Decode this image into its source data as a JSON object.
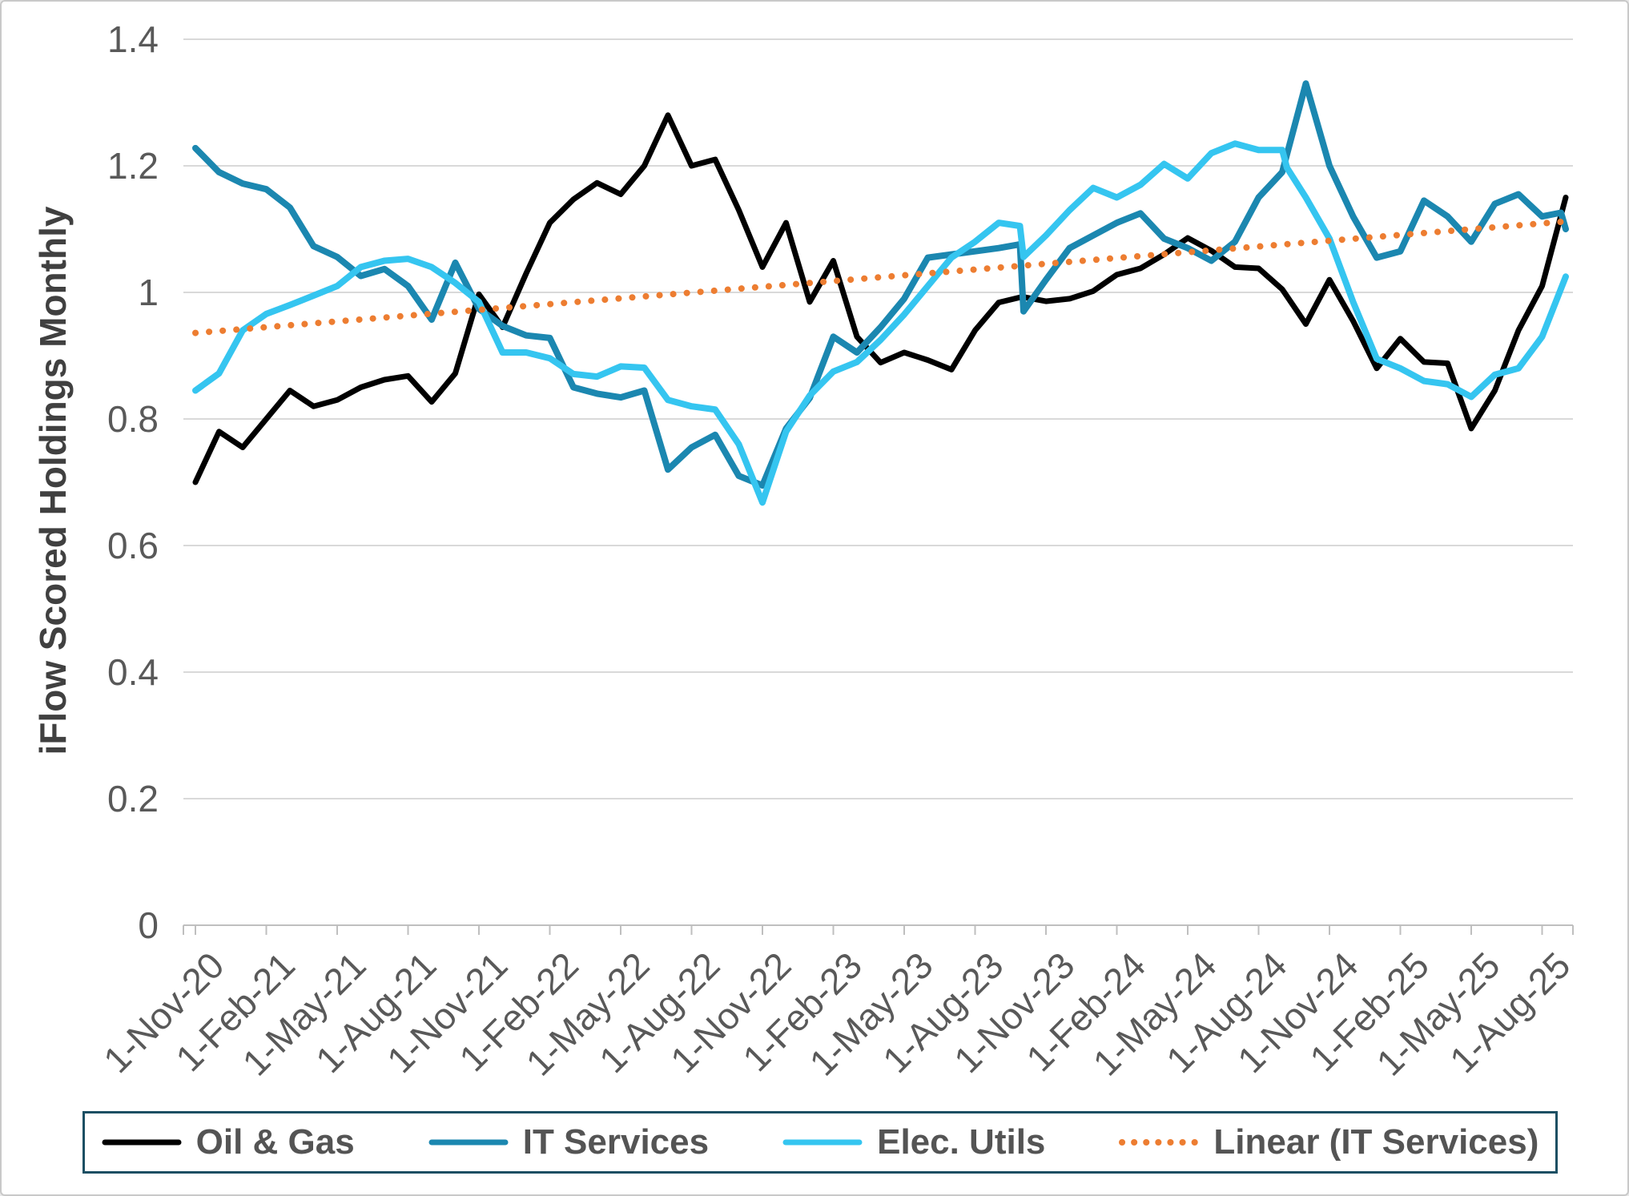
{
  "chart_data": {
    "type": "line",
    "title": "",
    "xlabel": "",
    "ylabel": "iFlow Scored Holdings Monthly",
    "ylim": [
      0,
      1.4
    ],
    "grid": "horizontal",
    "legend_position": "bottom",
    "x_unit": "months since 1-Nov-20 (monthly data, fractional x = same-date step)",
    "y_ticks": {
      "values": [
        0,
        0.2,
        0.4,
        0.6,
        0.8,
        1.0,
        1.2,
        1.4
      ],
      "labels": [
        "0",
        "0.2",
        "0.4",
        "0.6",
        "0.8",
        "1",
        "1.2",
        "1.4"
      ]
    },
    "x_tick_month_indices": [
      0,
      3,
      6,
      9,
      12,
      15,
      18,
      21,
      24,
      27,
      30,
      33,
      36,
      39,
      42,
      45,
      48,
      51,
      54,
      57
    ],
    "x_tick_labels": [
      "1-Nov-20",
      "1-Feb-21",
      "1-May-21",
      "1-Aug-21",
      "1-Nov-21",
      "1-Feb-22",
      "1-May-22",
      "1-Aug-22",
      "1-Nov-22",
      "1-Feb-23",
      "1-May-23",
      "1-Aug-23",
      "1-Nov-23",
      "1-Feb-24",
      "1-May-24",
      "1-Aug-24",
      "1-Nov-24",
      "1-Feb-25",
      "1-May-25",
      "1-Aug-25"
    ],
    "series": [
      {
        "name": "Oil & Gas",
        "color": "#000000",
        "style": "solid",
        "stroke_width": 7,
        "points": [
          [
            0,
            0.7
          ],
          [
            1,
            0.78
          ],
          [
            2,
            0.755
          ],
          [
            3,
            0.8
          ],
          [
            4,
            0.845
          ],
          [
            5,
            0.82
          ],
          [
            6,
            0.83
          ],
          [
            7,
            0.85
          ],
          [
            8,
            0.862
          ],
          [
            9,
            0.868
          ],
          [
            10,
            0.827
          ],
          [
            11,
            0.872
          ],
          [
            12,
            0.997
          ],
          [
            13,
            0.945
          ],
          [
            14,
            1.03
          ],
          [
            15,
            1.11
          ],
          [
            16,
            1.147
          ],
          [
            17,
            1.173
          ],
          [
            18,
            1.155
          ],
          [
            19,
            1.2
          ],
          [
            20,
            1.28
          ],
          [
            21,
            1.2
          ],
          [
            22,
            1.21
          ],
          [
            23,
            1.13
          ],
          [
            24,
            1.04
          ],
          [
            25,
            1.11
          ],
          [
            26,
            0.985
          ],
          [
            27,
            1.05
          ],
          [
            28,
            0.93
          ],
          [
            29,
            0.889
          ],
          [
            30,
            0.905
          ],
          [
            31,
            0.893
          ],
          [
            32,
            0.878
          ],
          [
            33,
            0.94
          ],
          [
            34,
            0.984
          ],
          [
            35,
            0.993
          ],
          [
            36,
            0.986
          ],
          [
            37,
            0.99
          ],
          [
            38,
            1.002
          ],
          [
            39,
            1.028
          ],
          [
            40,
            1.038
          ],
          [
            41,
            1.06
          ],
          [
            42,
            1.086
          ],
          [
            43,
            1.066
          ],
          [
            44,
            1.04
          ],
          [
            45,
            1.038
          ],
          [
            46,
            1.005
          ],
          [
            47,
            0.95
          ],
          [
            48,
            1.02
          ],
          [
            49,
            0.955
          ],
          [
            50,
            0.88
          ],
          [
            51,
            0.927
          ],
          [
            52,
            0.89
          ],
          [
            53,
            0.888
          ],
          [
            54,
            0.785
          ],
          [
            55,
            0.845
          ],
          [
            56,
            0.94
          ],
          [
            57,
            1.01
          ],
          [
            58,
            1.15
          ]
        ]
      },
      {
        "name": "IT Services",
        "color": "#1b87b0",
        "style": "solid",
        "stroke_width": 8,
        "points": [
          [
            0,
            1.228
          ],
          [
            1,
            1.19
          ],
          [
            2,
            1.172
          ],
          [
            3,
            1.163
          ],
          [
            4,
            1.134
          ],
          [
            5,
            1.073
          ],
          [
            6,
            1.056
          ],
          [
            7,
            1.026
          ],
          [
            8,
            1.037
          ],
          [
            9,
            1.01
          ],
          [
            10,
            0.957
          ],
          [
            11,
            1.047
          ],
          [
            12,
            0.974
          ],
          [
            13,
            0.947
          ],
          [
            14,
            0.932
          ],
          [
            15,
            0.928
          ],
          [
            16,
            0.85
          ],
          [
            17,
            0.84
          ],
          [
            18,
            0.834
          ],
          [
            19,
            0.845
          ],
          [
            20,
            0.72
          ],
          [
            21,
            0.755
          ],
          [
            22,
            0.775
          ],
          [
            23,
            0.71
          ],
          [
            24,
            0.695
          ],
          [
            25,
            0.785
          ],
          [
            26,
            0.833
          ],
          [
            27,
            0.93
          ],
          [
            28,
            0.905
          ],
          [
            29,
            0.945
          ],
          [
            30,
            0.99
          ],
          [
            31,
            1.055
          ],
          [
            32,
            1.06
          ],
          [
            33,
            1.065
          ],
          [
            34,
            1.07
          ],
          [
            34.9,
            1.076
          ],
          [
            35.05,
            0.97
          ],
          [
            36,
            1.02
          ],
          [
            37,
            1.07
          ],
          [
            38,
            1.09
          ],
          [
            39,
            1.11
          ],
          [
            40,
            1.125
          ],
          [
            41,
            1.085
          ],
          [
            42,
            1.07
          ],
          [
            43,
            1.05
          ],
          [
            44,
            1.08
          ],
          [
            45,
            1.15
          ],
          [
            46,
            1.19
          ],
          [
            47,
            1.33
          ],
          [
            48,
            1.2
          ],
          [
            49,
            1.12
          ],
          [
            50,
            1.055
          ],
          [
            51,
            1.065
          ],
          [
            52,
            1.145
          ],
          [
            53,
            1.12
          ],
          [
            54,
            1.08
          ],
          [
            55,
            1.14
          ],
          [
            56,
            1.155
          ],
          [
            57,
            1.12
          ],
          [
            57.8,
            1.126
          ],
          [
            58,
            1.1
          ]
        ]
      },
      {
        "name": "Elec. Utils",
        "color": "#35c5f0",
        "style": "solid",
        "stroke_width": 8,
        "points": [
          [
            0,
            0.845
          ],
          [
            1,
            0.872
          ],
          [
            2,
            0.94
          ],
          [
            3,
            0.966
          ],
          [
            4,
            0.98
          ],
          [
            5,
            0.995
          ],
          [
            6,
            1.01
          ],
          [
            7,
            1.04
          ],
          [
            8,
            1.05
          ],
          [
            9,
            1.053
          ],
          [
            10,
            1.04
          ],
          [
            11,
            1.015
          ],
          [
            12,
            0.985
          ],
          [
            13,
            0.905
          ],
          [
            14,
            0.905
          ],
          [
            15,
            0.896
          ],
          [
            16,
            0.871
          ],
          [
            17,
            0.867
          ],
          [
            18,
            0.883
          ],
          [
            19,
            0.881
          ],
          [
            20,
            0.83
          ],
          [
            21,
            0.82
          ],
          [
            22,
            0.815
          ],
          [
            23,
            0.76
          ],
          [
            24,
            0.668
          ],
          [
            25,
            0.78
          ],
          [
            26,
            0.837
          ],
          [
            27,
            0.875
          ],
          [
            28,
            0.89
          ],
          [
            29,
            0.925
          ],
          [
            30,
            0.965
          ],
          [
            31,
            1.01
          ],
          [
            32,
            1.055
          ],
          [
            33,
            1.08
          ],
          [
            34,
            1.11
          ],
          [
            34.9,
            1.105
          ],
          [
            35.05,
            1.056
          ],
          [
            36,
            1.09
          ],
          [
            37,
            1.13
          ],
          [
            38,
            1.165
          ],
          [
            39,
            1.15
          ],
          [
            40,
            1.17
          ],
          [
            41,
            1.203
          ],
          [
            42,
            1.18
          ],
          [
            43,
            1.22
          ],
          [
            44,
            1.235
          ],
          [
            45,
            1.225
          ],
          [
            46,
            1.225
          ],
          [
            46.2,
            1.197
          ],
          [
            47,
            1.15
          ],
          [
            48,
            1.085
          ],
          [
            49,
            0.985
          ],
          [
            50,
            0.895
          ],
          [
            51,
            0.88
          ],
          [
            52,
            0.86
          ],
          [
            53,
            0.855
          ],
          [
            54,
            0.835
          ],
          [
            55,
            0.87
          ],
          [
            56,
            0.88
          ],
          [
            57,
            0.93
          ],
          [
            58,
            1.025
          ]
        ]
      },
      {
        "name": "Linear (IT Services)",
        "color": "#ed7d31",
        "style": "dotted",
        "stroke_width": 8,
        "points": [
          [
            0,
            0.936
          ],
          [
            58,
            1.112
          ]
        ]
      }
    ]
  },
  "axis": {
    "y_title": "iFlow Scored Holdings Monthly"
  }
}
